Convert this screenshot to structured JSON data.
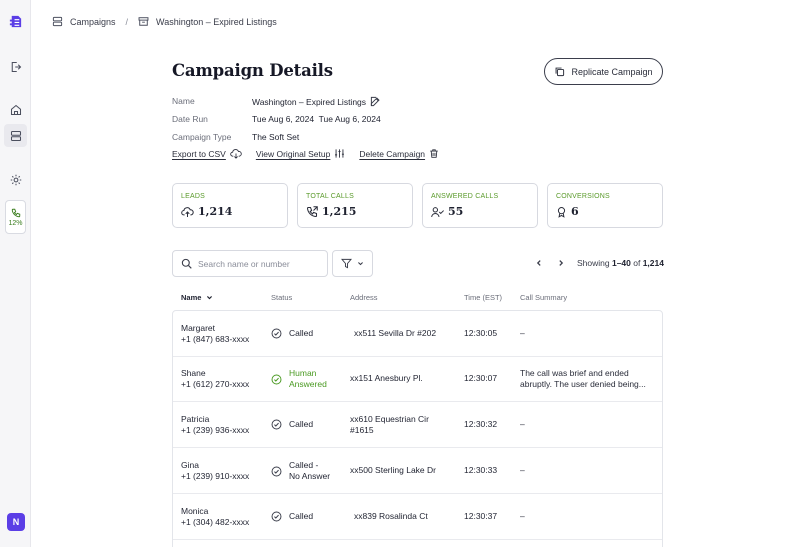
{
  "breadcrumb": {
    "campaigns": "Campaigns",
    "separator": "/",
    "current": "Washington – Expired Listings"
  },
  "sidebar": {
    "usage_pct": "12%",
    "avatar": "N"
  },
  "header": {
    "title": "Campaign Details",
    "replicate_label": "Replicate Campaign"
  },
  "details": {
    "name_label": "Name",
    "name_value": "Washington – Expired Listings",
    "date_label": "Date Run",
    "date_value": "Tue Aug 6, 2024  Tue Aug 6, 2024",
    "type_label": "Campaign Type",
    "type_value": "The Soft Set"
  },
  "actions": {
    "export": "Export to CSV",
    "view_setup": "View Original Setup",
    "delete": "Delete Campaign"
  },
  "stats": [
    {
      "label": "LEADS",
      "value": "1,214",
      "icon": "cloud-upload-icon"
    },
    {
      "label": "TOTAL CALLS",
      "value": "1,215",
      "icon": "phone-outgoing-icon"
    },
    {
      "label": "ANSWERED CALLS",
      "value": "55",
      "icon": "user-check-icon"
    },
    {
      "label": "CONVERSIONS",
      "value": "6",
      "icon": "award-icon"
    }
  ],
  "search": {
    "placeholder": "Search name or number"
  },
  "pager": {
    "prefix": "Showing ",
    "range": "1–40",
    "of": " of ",
    "total": "1,214"
  },
  "table": {
    "headers": {
      "name": "Name",
      "status": "Status",
      "address": "Address",
      "time": "Time (EST)",
      "summary": "Call Summary"
    },
    "rows": [
      {
        "name": "Margaret",
        "phone": "+1 (847) 683-xxxx",
        "status1": "Called",
        "status2": "",
        "addr1": "xx511 Sevilla Dr #202",
        "addr2": "",
        "time": "12:30:05",
        "sum1": "–",
        "sum2": ""
      },
      {
        "name": "Shane",
        "phone": "+1 (612) 270-xxxx",
        "status1": "Human",
        "status2": "Answered",
        "addr1": "xx151 Anesbury Pl.",
        "addr2": "",
        "time": "12:30:07",
        "sum1": "The call was brief and ended",
        "sum2": "abruptly. The user denied being..."
      },
      {
        "name": "Patricia",
        "phone": "+1 (239) 936-xxxx",
        "status1": "Called",
        "status2": "",
        "addr1": "xx610 Equestrian Cir",
        "addr2": "#1615",
        "time": "12:30:32",
        "sum1": "–",
        "sum2": ""
      },
      {
        "name": "Gina",
        "phone": "+1 (239) 910-xxxx",
        "status1": "Called -",
        "status2": "No Answer",
        "addr1": "xx500 Sterling Lake Dr",
        "addr2": "",
        "time": "12:30:33",
        "sum1": "–",
        "sum2": ""
      },
      {
        "name": "Monica",
        "phone": "+1 (304) 482-xxxx",
        "status1": "Called",
        "status2": "",
        "addr1": "xx839 Rosalinda Ct",
        "addr2": "",
        "time": "12:30:37",
        "sum1": "–",
        "sum2": ""
      }
    ]
  },
  "colors": {
    "accent_green": "#4a9a22",
    "brand_purple": "#5b3ee6"
  }
}
